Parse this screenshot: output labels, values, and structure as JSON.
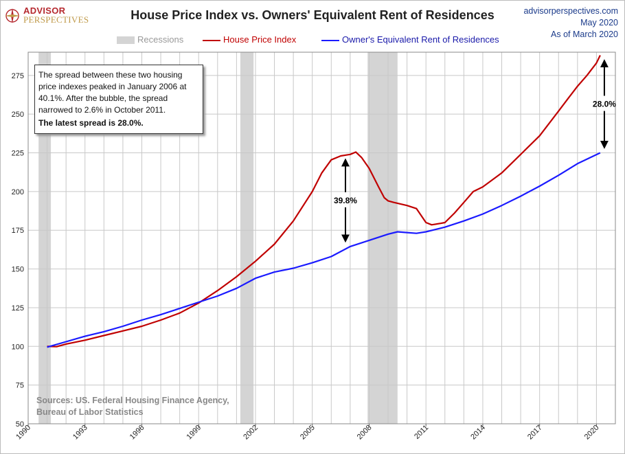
{
  "header": {
    "logo_top": "ADVISOR",
    "logo_bottom": "PERSPECTIVES",
    "title": "House Price Index vs. Owners' Equivalent Rent of Residences",
    "site": "advisorperspectives.com",
    "date": "May 2020",
    "as_of": "As of March 2020"
  },
  "legend": {
    "recessions": "Recessions",
    "hpi": "House Price Index",
    "oer": "Owner's Equivalent Rent of Residences"
  },
  "note": {
    "body": "The spread between these two housing price indexes peaked in January 2006 at 40.1%. After the bubble, the spread narrowed to 2.6%  in October 2011.",
    "latest": "The latest spread is 28.0%."
  },
  "sources": {
    "line1": "Sources: US. Federal Housing Finance Agency,",
    "line2": "Bureau of Labor Statistics"
  },
  "colors": {
    "hpi": "#c00000",
    "oer": "#1a1aff",
    "recession": "#d4d4d4",
    "grid": "#c8c8c8"
  },
  "chart_data": {
    "type": "line",
    "title": "House Price Index vs. Owners' Equivalent Rent of Residences",
    "xlim": [
      1990,
      2021
    ],
    "ylim": [
      50,
      290
    ],
    "x_ticks": [
      1990,
      1993,
      1996,
      1999,
      2002,
      2005,
      2008,
      2011,
      2014,
      2017,
      2020
    ],
    "y_ticks": [
      50,
      75,
      100,
      125,
      150,
      175,
      200,
      225,
      250,
      275
    ],
    "grid": true,
    "legend_position": "top-center",
    "recessions": [
      [
        1990.55,
        1991.2
      ],
      [
        2001.2,
        2001.9
      ],
      [
        2007.92,
        2009.5
      ]
    ],
    "series": [
      {
        "name": "House Price Index",
        "color": "#c00000",
        "points": [
          [
            1991.0,
            100
          ],
          [
            1991.5,
            99.8
          ],
          [
            1992.0,
            101.5
          ],
          [
            1993.0,
            104
          ],
          [
            1994.0,
            107
          ],
          [
            1995.0,
            110
          ],
          [
            1996.0,
            113
          ],
          [
            1997.0,
            117
          ],
          [
            1998.0,
            121.5
          ],
          [
            1999.0,
            128
          ],
          [
            2000.0,
            136
          ],
          [
            2001.0,
            145
          ],
          [
            2002.0,
            155
          ],
          [
            2003.0,
            166
          ],
          [
            2004.0,
            181
          ],
          [
            2005.0,
            200
          ],
          [
            2005.5,
            212
          ],
          [
            2006.0,
            220.5
          ],
          [
            2006.5,
            223
          ],
          [
            2007.0,
            224
          ],
          [
            2007.3,
            225.5
          ],
          [
            2007.6,
            222
          ],
          [
            2008.0,
            215
          ],
          [
            2008.5,
            203
          ],
          [
            2008.8,
            196
          ],
          [
            2009.0,
            194
          ],
          [
            2009.3,
            193
          ],
          [
            2010.0,
            191
          ],
          [
            2010.5,
            189
          ],
          [
            2011.0,
            180
          ],
          [
            2011.3,
            178.5
          ],
          [
            2011.8,
            179.5
          ],
          [
            2012.0,
            180
          ],
          [
            2012.5,
            186
          ],
          [
            2013.0,
            193
          ],
          [
            2013.5,
            200
          ],
          [
            2014.0,
            203
          ],
          [
            2015.0,
            212
          ],
          [
            2016.0,
            224
          ],
          [
            2017.0,
            236
          ],
          [
            2018.0,
            252
          ],
          [
            2018.5,
            260
          ],
          [
            2019.0,
            268
          ],
          [
            2019.5,
            275
          ],
          [
            2020.0,
            283
          ],
          [
            2020.2,
            288
          ]
        ]
      },
      {
        "name": "Owner's Equivalent Rent of Residences",
        "color": "#1a1aff",
        "points": [
          [
            1991.0,
            99.5
          ],
          [
            1992.0,
            103
          ],
          [
            1993.0,
            106.5
          ],
          [
            1994.0,
            109.5
          ],
          [
            1995.0,
            113
          ],
          [
            1996.0,
            117
          ],
          [
            1997.0,
            120.5
          ],
          [
            1998.0,
            124.5
          ],
          [
            1999.0,
            128.5
          ],
          [
            2000.0,
            132.5
          ],
          [
            2001.0,
            137.5
          ],
          [
            2002.0,
            144
          ],
          [
            2003.0,
            148
          ],
          [
            2004.0,
            150.5
          ],
          [
            2005.0,
            154
          ],
          [
            2006.0,
            158
          ],
          [
            2007.0,
            164.5
          ],
          [
            2008.0,
            168.5
          ],
          [
            2009.0,
            172.5
          ],
          [
            2009.5,
            174
          ],
          [
            2010.0,
            173.5
          ],
          [
            2010.5,
            173
          ],
          [
            2011.0,
            174
          ],
          [
            2012.0,
            177
          ],
          [
            2013.0,
            181
          ],
          [
            2014.0,
            185.5
          ],
          [
            2015.0,
            191
          ],
          [
            2016.0,
            197
          ],
          [
            2017.0,
            203.5
          ],
          [
            2018.0,
            210.5
          ],
          [
            2019.0,
            218
          ],
          [
            2020.2,
            225
          ]
        ]
      }
    ],
    "annotations": [
      {
        "text": "39.8%",
        "x": 2006.75,
        "y_from": 224,
        "y_to": 164.5
      },
      {
        "text": "28.0%",
        "x": 2020.2,
        "y_from": 288,
        "y_to": 225
      }
    ]
  }
}
